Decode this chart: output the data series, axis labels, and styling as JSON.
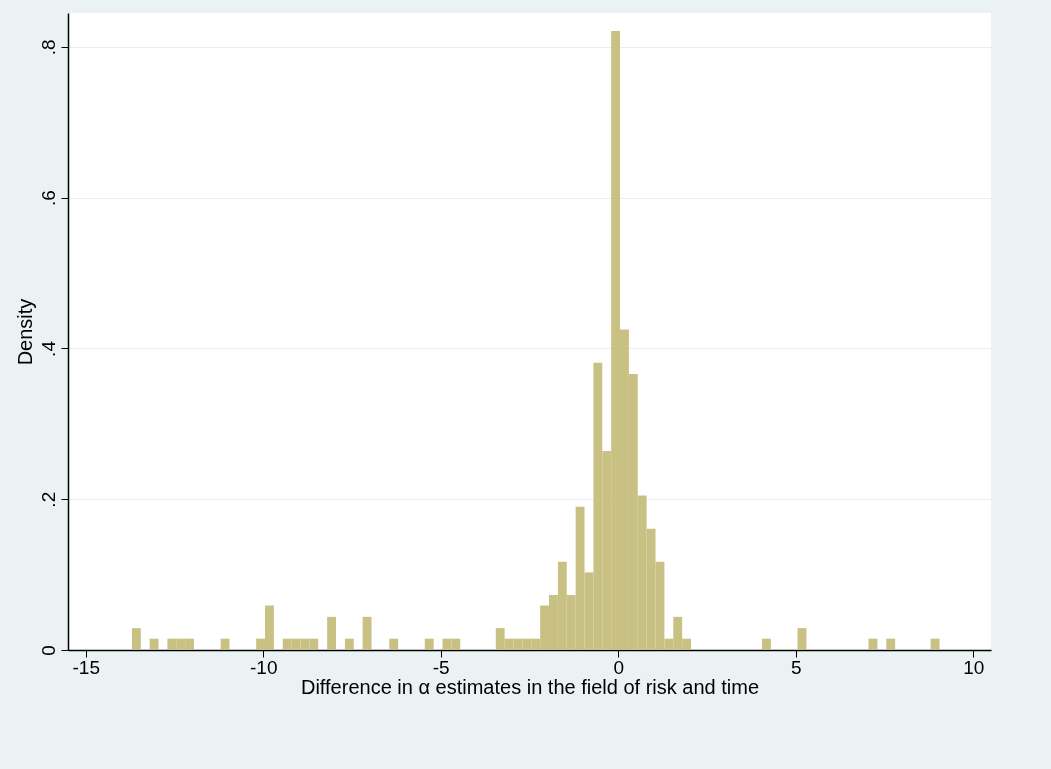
{
  "chart_data": {
    "type": "histogram",
    "xlabel": "Difference in α estimates in the field of risk and time",
    "ylabel": "Density",
    "bins": [
      -13.7,
      -13.45,
      -13.2,
      -12.95,
      -12.7,
      -12.45,
      -12.2,
      -11.95,
      -11.2,
      -10.95,
      -10.2,
      -9.95,
      -9.7,
      -9.45,
      -9.2,
      -8.95,
      -8.7,
      -8.45,
      -8.2,
      -7.95,
      -7.7,
      -7.45,
      -7.2,
      -6.95,
      -6.45,
      -6.2,
      -5.45,
      -5.2,
      -4.95,
      -4.7,
      -4.45,
      -3.45,
      -3.2,
      -2.95,
      -2.7,
      -2.45,
      -2.2,
      -1.95,
      -1.7,
      -1.45,
      -1.2,
      -0.95,
      -0.7,
      -0.45,
      -0.2,
      0.05,
      0.3,
      0.55,
      0.8,
      1.05,
      1.3,
      1.55,
      1.8,
      2.05,
      4.05,
      4.3,
      5.05,
      5.3,
      7.05,
      7.3,
      7.55,
      7.8,
      8.8,
      9.05
    ],
    "values": [
      0.029,
      0,
      0.015,
      0,
      0.015,
      0.015,
      0.015,
      0,
      0.015,
      0,
      0.015,
      0.059,
      0,
      0.015,
      0.015,
      0.015,
      0.015,
      0,
      0.044,
      0,
      0.015,
      0,
      0.044,
      0,
      0.015,
      0,
      0.015,
      0,
      0.015,
      0.015,
      0,
      0.029,
      0.015,
      0.015,
      0.015,
      0.015,
      0.059,
      0.073,
      0.117,
      0.073,
      0.19,
      0.103,
      0.381,
      0.264,
      0.821,
      0.425,
      0.366,
      0.205,
      0.161,
      0.117,
      0.015,
      0.044,
      0.015,
      0,
      0.015,
      0,
      0.029,
      0,
      0.015,
      0,
      0.015,
      0,
      0.015
    ],
    "color": "#c9c183",
    "xlim": [
      -15.5,
      10.5
    ],
    "xticks": [
      -15,
      -10,
      -5,
      0,
      5,
      10
    ],
    "ylim": [
      0,
      0.845
    ],
    "yticks": [
      {
        "value": 0,
        "label": "0"
      },
      {
        "value": 0.2,
        "label": ".2"
      },
      {
        "value": 0.4,
        "label": ".4"
      },
      {
        "value": 0.6,
        "label": ".6"
      },
      {
        "value": 0.8,
        "label": ".8"
      }
    ],
    "grid": "y"
  }
}
